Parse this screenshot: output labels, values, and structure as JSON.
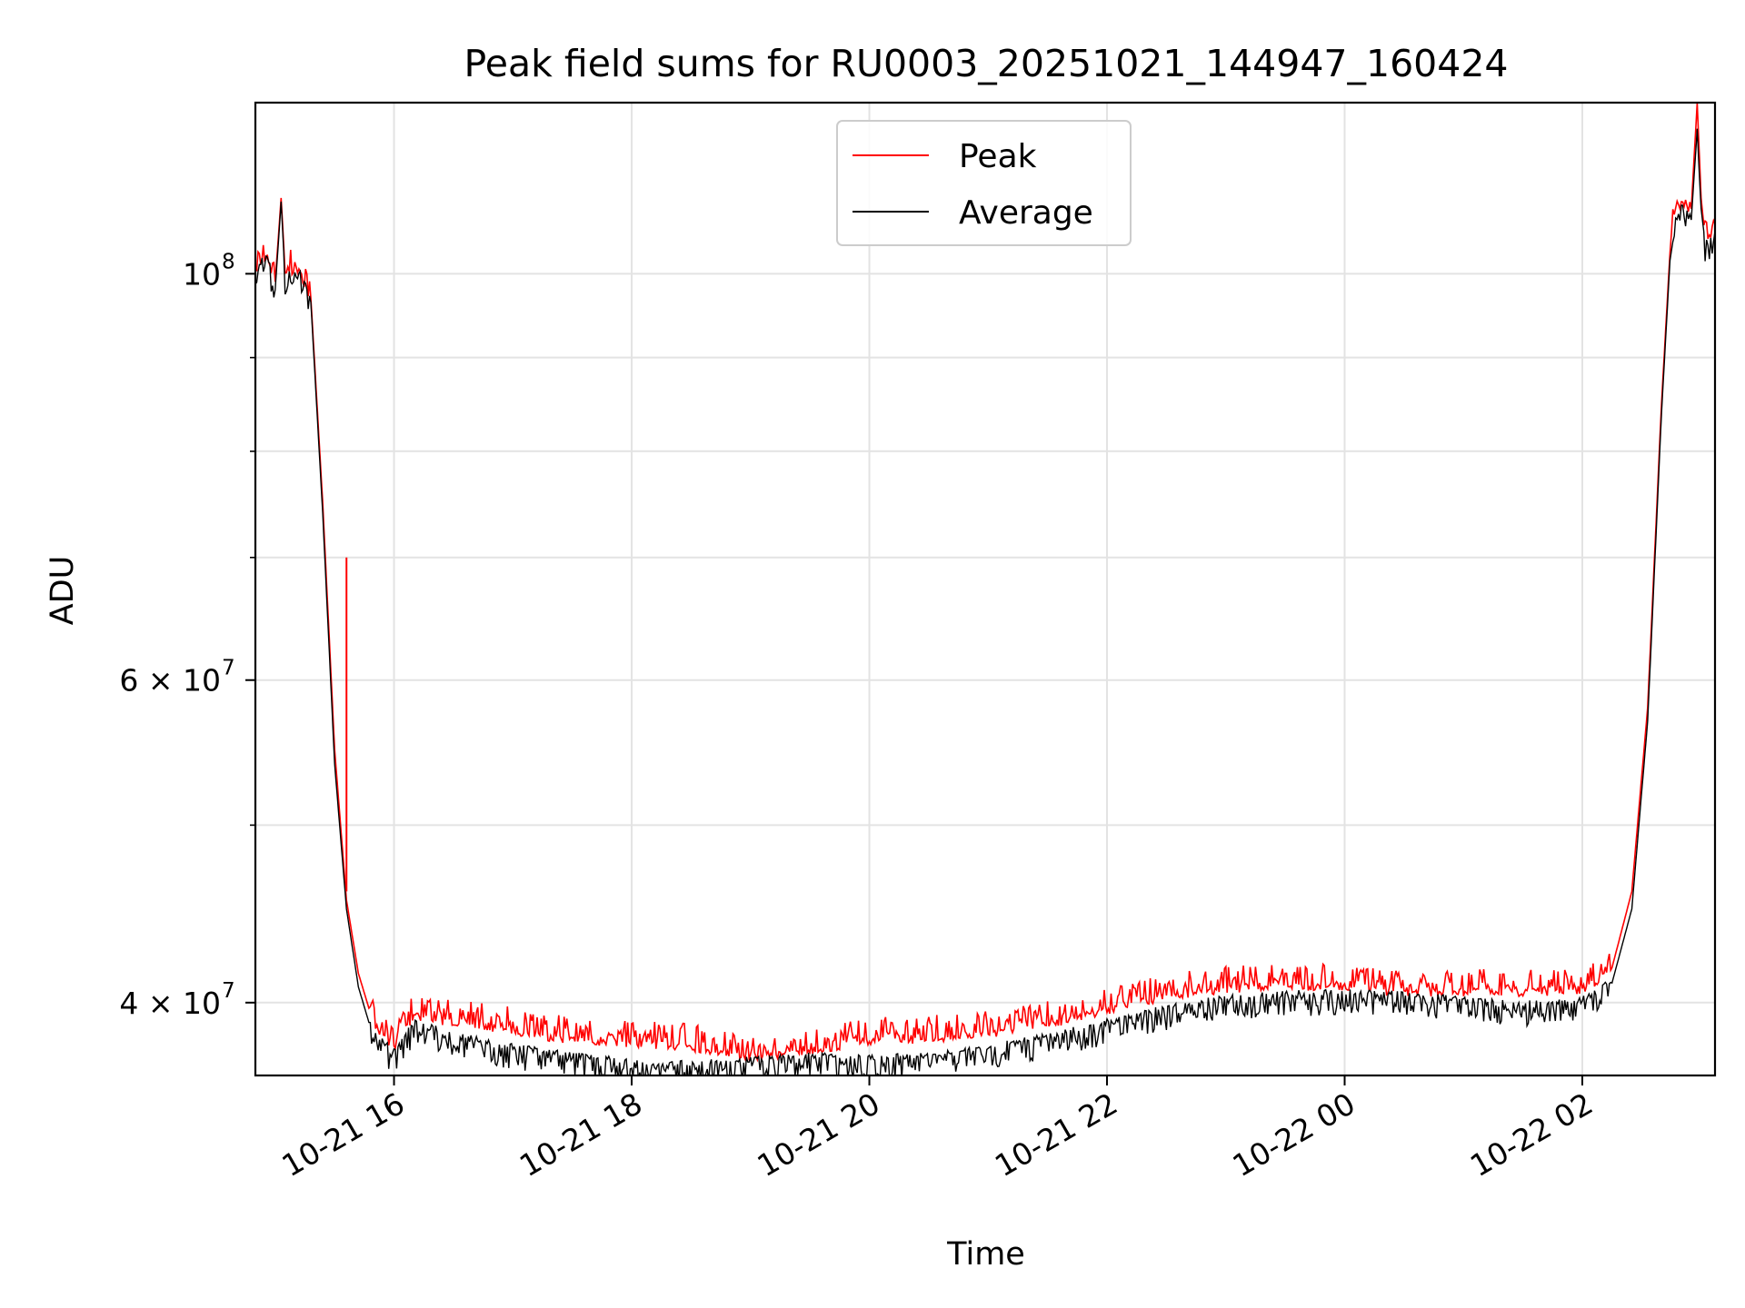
{
  "chart_data": {
    "type": "line",
    "title": "Peak field sums for RU0003_20251021_144947_160424",
    "xlabel": "Time",
    "ylabel": "ADU",
    "yscale": "log",
    "ylim": [
      36500000,
      124000000
    ],
    "xlim": [
      "2025-10-21 14:50",
      "2025-10-22 03:07"
    ],
    "grid": true,
    "legend_position": "upper center",
    "x_ticks": [
      {
        "value": "2025-10-21 16:00",
        "label": "10-21 16"
      },
      {
        "value": "2025-10-21 18:00",
        "label": "10-21 18"
      },
      {
        "value": "2025-10-21 20:00",
        "label": "10-21 20"
      },
      {
        "value": "2025-10-21 22:00",
        "label": "10-21 22"
      },
      {
        "value": "2025-10-22 00:00",
        "label": "10-22 00"
      },
      {
        "value": "2025-10-22 02:00",
        "label": "10-22 02"
      }
    ],
    "y_ticks": [
      {
        "value": 100000000,
        "base": "10",
        "exp": "8",
        "mant": ""
      },
      {
        "value": 60000000,
        "base": "10",
        "exp": "7",
        "mant": "6 × "
      },
      {
        "value": 40000000,
        "base": "10",
        "exp": "7",
        "mant": "4 × "
      }
    ],
    "y_minor_ticks": [
      50000000,
      70000000,
      80000000,
      90000000
    ],
    "series": [
      {
        "name": "Peak",
        "color": "#ff0000",
        "points": [
          [
            "2025-10-21 14:50",
            101000000
          ],
          [
            "2025-10-21 14:56",
            102500000
          ],
          [
            "2025-10-21 15:00",
            99000000
          ],
          [
            "2025-10-21 15:03",
            110000000
          ],
          [
            "2025-10-21 15:05",
            100500000
          ],
          [
            "2025-10-21 15:12",
            101000000
          ],
          [
            "2025-10-21 15:18",
            97000000
          ],
          [
            "2025-10-21 15:24",
            75000000
          ],
          [
            "2025-10-21 15:30",
            55000000
          ],
          [
            "2025-10-21 15:36",
            45500000
          ],
          [
            "2025-10-21 15:42",
            41500000
          ],
          [
            "2025-10-21 15:48",
            39500000
          ],
          [
            "2025-10-21 15:54",
            38500000
          ],
          [
            "2025-10-21 16:00",
            38000000
          ],
          [
            "2025-10-21 16:10",
            39500000
          ],
          [
            "2025-10-21 16:30",
            39200000
          ],
          [
            "2025-10-21 17:00",
            38800000
          ],
          [
            "2025-10-21 17:30",
            38300000
          ],
          [
            "2025-10-21 18:00",
            38200000
          ],
          [
            "2025-10-21 18:30",
            38000000
          ],
          [
            "2025-10-21 19:00",
            37500000
          ],
          [
            "2025-10-21 19:30",
            37800000
          ],
          [
            "2025-10-21 20:00",
            38300000
          ],
          [
            "2025-10-21 20:30",
            38400000
          ],
          [
            "2025-10-21 21:00",
            38600000
          ],
          [
            "2025-10-21 21:30",
            39100000
          ],
          [
            "2025-10-21 22:00",
            39800000
          ],
          [
            "2025-10-21 22:30",
            40500000
          ],
          [
            "2025-10-21 23:00",
            40900000
          ],
          [
            "2025-10-21 23:30",
            41000000
          ],
          [
            "2025-10-22 00:00",
            41000000
          ],
          [
            "2025-10-22 00:30",
            40700000
          ],
          [
            "2025-10-22 01:00",
            40700000
          ],
          [
            "2025-10-22 01:30",
            40700000
          ],
          [
            "2025-10-22 02:00",
            40800000
          ],
          [
            "2025-10-22 02:15",
            41800000
          ],
          [
            "2025-10-22 02:25",
            46000000
          ],
          [
            "2025-10-22 02:33",
            58000000
          ],
          [
            "2025-10-22 02:40",
            85000000
          ],
          [
            "2025-10-22 02:45",
            106000000
          ],
          [
            "2025-10-22 02:50",
            110000000
          ],
          [
            "2025-10-22 02:55",
            108500000
          ],
          [
            "2025-10-22 02:58",
            124000000
          ],
          [
            "2025-10-22 03:00",
            110000000
          ],
          [
            "2025-10-22 03:02",
            104500000
          ],
          [
            "2025-10-22 03:07",
            106500000
          ]
        ]
      },
      {
        "name": "Average",
        "color": "#000000",
        "points": [
          [
            "2025-10-21 14:50",
            100500000
          ],
          [
            "2025-10-21 14:56",
            102000000
          ],
          [
            "2025-10-21 15:00",
            98000000
          ],
          [
            "2025-10-21 15:03",
            109500000
          ],
          [
            "2025-10-21 15:05",
            99500000
          ],
          [
            "2025-10-21 15:12",
            100500000
          ],
          [
            "2025-10-21 15:18",
            96500000
          ],
          [
            "2025-10-21 15:24",
            74000000
          ],
          [
            "2025-10-21 15:30",
            54000000
          ],
          [
            "2025-10-21 15:36",
            45000000
          ],
          [
            "2025-10-21 15:42",
            40800000
          ],
          [
            "2025-10-21 15:48",
            38800000
          ],
          [
            "2025-10-21 15:54",
            38000000
          ],
          [
            "2025-10-21 16:00",
            37500000
          ],
          [
            "2025-10-21 16:10",
            38900000
          ],
          [
            "2025-10-21 16:30",
            38300000
          ],
          [
            "2025-10-21 17:00",
            37700000
          ],
          [
            "2025-10-21 17:30",
            37300000
          ],
          [
            "2025-10-21 18:00",
            37000000
          ],
          [
            "2025-10-21 18:30",
            36900000
          ],
          [
            "2025-10-21 19:00",
            37100000
          ],
          [
            "2025-10-21 19:30",
            37300000
          ],
          [
            "2025-10-21 20:00",
            37200000
          ],
          [
            "2025-10-21 20:30",
            37300000
          ],
          [
            "2025-10-21 21:00",
            37700000
          ],
          [
            "2025-10-21 21:30",
            38200000
          ],
          [
            "2025-10-21 22:00",
            38900000
          ],
          [
            "2025-10-21 22:30",
            39600000
          ],
          [
            "2025-10-21 23:00",
            40100000
          ],
          [
            "2025-10-21 23:30",
            40300000
          ],
          [
            "2025-10-22 00:00",
            40400000
          ],
          [
            "2025-10-22 00:30",
            40300000
          ],
          [
            "2025-10-22 01:00",
            40000000
          ],
          [
            "2025-10-22 01:30",
            39800000
          ],
          [
            "2025-10-22 02:00",
            40000000
          ],
          [
            "2025-10-22 02:15",
            41000000
          ],
          [
            "2025-10-22 02:25",
            45000000
          ],
          [
            "2025-10-22 02:33",
            57000000
          ],
          [
            "2025-10-22 02:40",
            84000000
          ],
          [
            "2025-10-22 02:45",
            105000000
          ],
          [
            "2025-10-22 02:50",
            108500000
          ],
          [
            "2025-10-22 02:55",
            107000000
          ],
          [
            "2025-10-22 02:58",
            120000000
          ],
          [
            "2025-10-22 03:00",
            108000000
          ],
          [
            "2025-10-22 03:02",
            103500000
          ],
          [
            "2025-10-22 03:07",
            105500000
          ]
        ]
      }
    ],
    "annotations": [
      {
        "series": "Peak",
        "type": "spike",
        "x": "2025-10-21 15:36",
        "y": 70000000
      }
    ]
  }
}
